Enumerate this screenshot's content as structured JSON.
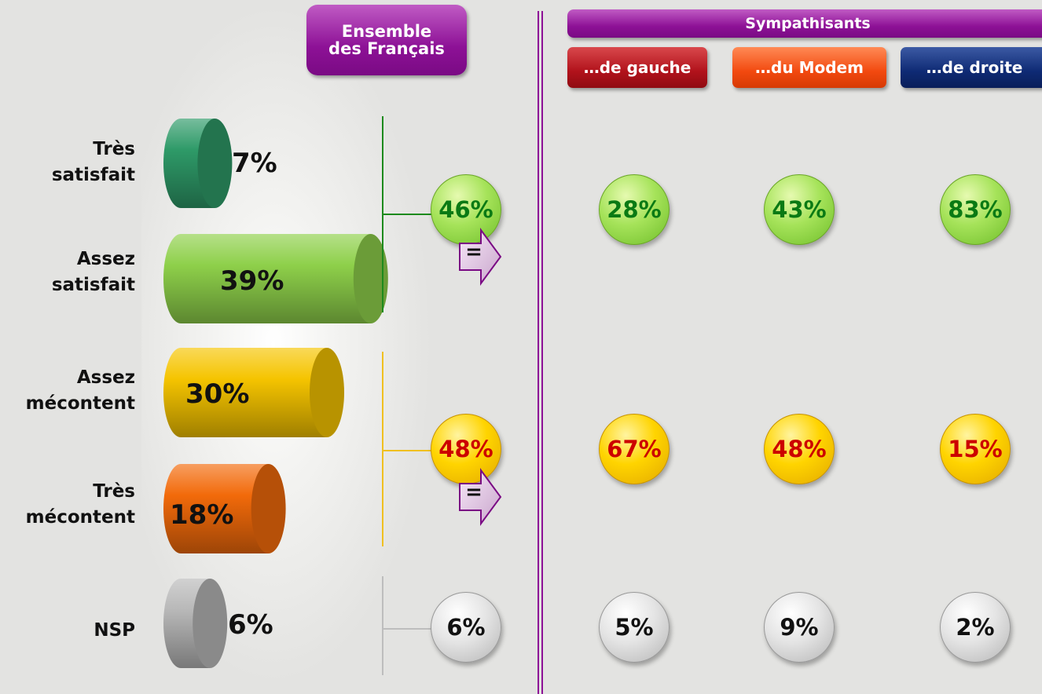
{
  "headers": {
    "ensemble": "Ensemble\ndes Français",
    "sympathisants": "Sympathisants",
    "gauche": "…de gauche",
    "modem": "…du Modem",
    "droite": "…de droite"
  },
  "chart_data": {
    "type": "bar",
    "categories": [
      "Très\nsatisfait",
      "Assez\nsatisfait",
      "Assez\nmécontent",
      "Très\nmécontent",
      "NSP"
    ],
    "series": [
      {
        "values": [
          7,
          39,
          30,
          18,
          6
        ]
      }
    ],
    "value_labels": [
      "7%",
      "39%",
      "30%",
      "18%",
      "6%"
    ],
    "colors": [
      "#2e9a68",
      "#8ed04a",
      "#f5c400",
      "#f26a0a",
      "#b8b8b8"
    ],
    "groups": [
      {
        "ensemble": "46%",
        "evolution": "=",
        "gauche": "28%",
        "modem": "43%",
        "droite": "83%",
        "color": "#0a7a14",
        "ball": "green"
      },
      {
        "ensemble": "48%",
        "evolution": "=",
        "gauche": "67%",
        "modem": "48%",
        "droite": "15%",
        "color": "#cc0000",
        "ball": "yellow"
      },
      {
        "ensemble": "6%",
        "gauche": "5%",
        "modem": "9%",
        "droite": "2%",
        "color": "#111111",
        "ball": "grey"
      }
    ]
  },
  "brackets": {
    "satisfait_color": "#1d8a1d",
    "mecontent_color": "#f0c020",
    "nsp_color": "#bdbdbd"
  },
  "theme": {
    "accent": "#8d1196"
  }
}
